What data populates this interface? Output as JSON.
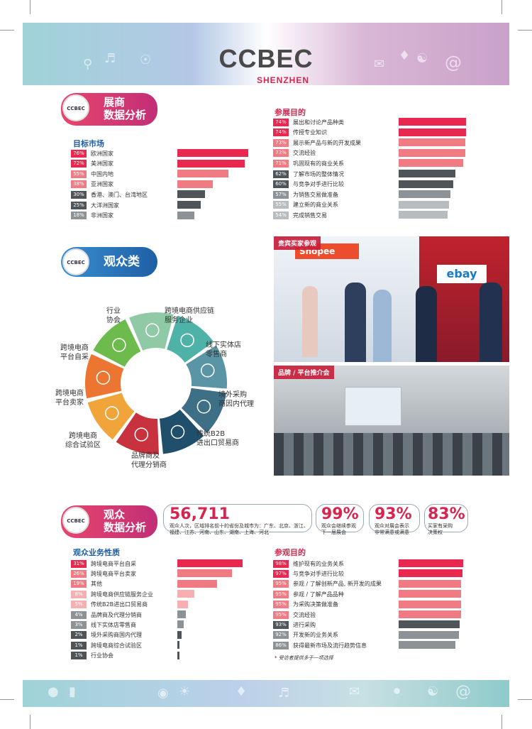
{
  "header": {
    "title": "CCBEC",
    "subtitle": "SHENZHEN"
  },
  "colors": {
    "red": "#e8284f",
    "pink": "#f07b83",
    "lightpink": "#f6b0b2",
    "dark": "#4f5458",
    "grey": "#8d9296",
    "lightgrey": "#b9bcbe"
  },
  "exhibitor": {
    "badge": "CCBEC",
    "title_line1": "展商",
    "title_line2": "数据分析",
    "target_market": {
      "title": "目标市场",
      "items": [
        {
          "pct": "76%",
          "label": "欧洲国家",
          "value": 76
        },
        {
          "pct": "72%",
          "label": "美洲国家",
          "value": 72
        },
        {
          "pct": "55%",
          "label": "中国内地",
          "value": 55
        },
        {
          "pct": "38%",
          "label": "亚洲国家",
          "value": 38
        },
        {
          "pct": "30%",
          "label": "香港、澳门、台湾地区",
          "value": 30
        },
        {
          "pct": "25%",
          "label": "大洋洲国家",
          "value": 25
        },
        {
          "pct": "18%",
          "label": "非洲国家",
          "value": 18
        }
      ]
    },
    "purpose": {
      "title": "参展目的",
      "items": [
        {
          "pct": "74%",
          "label": "展出和讨论产品种类",
          "value": 74
        },
        {
          "pct": "74%",
          "label": "传授专业知识",
          "value": 74
        },
        {
          "pct": "73%",
          "label": "展示新产品与新的开发成果",
          "value": 73
        },
        {
          "pct": "73%",
          "label": "交流经验",
          "value": 73
        },
        {
          "pct": "71%",
          "label": "巩固现有的商业关系",
          "value": 71
        },
        {
          "pct": "62%",
          "label": "了解市场的整体情况",
          "value": 62
        },
        {
          "pct": "60%",
          "label": "与竞争对手进行比较",
          "value": 60
        },
        {
          "pct": "57%",
          "label": "为销售交易做准备",
          "value": 57
        },
        {
          "pct": "55%",
          "label": "建立新的商业关系",
          "value": 55
        },
        {
          "pct": "54%",
          "label": "完成销售交易",
          "value": 54
        }
      ]
    }
  },
  "audience_category": {
    "badge": "CCBEC",
    "title": "观众类别",
    "segments": [
      "行业\n协会",
      "跨境电商供应链\n服务企业",
      "线下实体店\n零售商",
      "境外采购\n商因内代理",
      "传统B2B\n进出口贸易商",
      "品牌商及\n代理分销商",
      "跨境电商\n综合试验区",
      "跨境电商\n平台卖家",
      "跨境电商\n平台自采"
    ]
  },
  "photos": {
    "top_caption": "贵宾买家参观",
    "bottom_caption": "品牌 / 平台推介会",
    "sign_shopee": "Shopee",
    "sign_ebay": "ebay"
  },
  "visitor": {
    "badge": "CCBEC",
    "title_line1": "观众",
    "title_line2": "数据分析",
    "stats": {
      "visitors": "56,711",
      "visitors_text": "观众人次，区域排名前十的省份及城市为：广东、北京、浙江、福建、江苏、河南、山东、湖南、上海、河北",
      "s1_value": "99%",
      "s1_text": "观众会继续参观\n下一届展会",
      "s2_value": "93%",
      "s2_text": "观众对展会表示\n非常满意或满意",
      "s3_value": "83%",
      "s3_text": "买家有采购\n决策权"
    },
    "business": {
      "title": "观众业务性质",
      "items": [
        {
          "pct": "31%",
          "label": "跨境电商平台自采",
          "value": 31
        },
        {
          "pct": "26%",
          "label": "跨境电商平台卖家",
          "value": 26
        },
        {
          "pct": "19%",
          "label": "其他",
          "value": 19
        },
        {
          "pct": "8%",
          "label": "跨境电商供应链服务企业",
          "value": 8
        },
        {
          "pct": "5%",
          "label": "传统B2B进出口贸易商",
          "value": 5
        },
        {
          "pct": "4%",
          "label": "品牌商及代理分销商",
          "value": 4
        },
        {
          "pct": "3%",
          "label": "线下实体店零售商",
          "value": 3
        },
        {
          "pct": "2%",
          "label": "境外采购商国内代理",
          "value": 2
        },
        {
          "pct": "1%",
          "label": "跨境电商综合试验区",
          "value": 1
        },
        {
          "pct": "1%",
          "label": "行业协会",
          "value": 1
        }
      ]
    },
    "purpose": {
      "title": "参观目的",
      "items": [
        {
          "pct": "98%",
          "label": "维护现有的业务关系",
          "value": 98
        },
        {
          "pct": "97%",
          "label": "与竞争对手进行比较",
          "value": 97
        },
        {
          "pct": "95%",
          "label": "参观 / 了解创新产品, 新开发的成果",
          "value": 95
        },
        {
          "pct": "95%",
          "label": "参观 / 了解产品品种",
          "value": 95
        },
        {
          "pct": "95%",
          "label": "为采购决策做准备",
          "value": 95
        },
        {
          "pct": "95%",
          "label": "交流经验",
          "value": 95
        },
        {
          "pct": "93%",
          "label": "进行采购",
          "value": 93
        },
        {
          "pct": "92%",
          "label": "开发新的业务关系",
          "value": 92
        },
        {
          "pct": "86%",
          "label": "获得最新市场及流行趋势信息",
          "value": 86
        }
      ],
      "note": "* 受访者提供多于一项选择"
    }
  }
}
